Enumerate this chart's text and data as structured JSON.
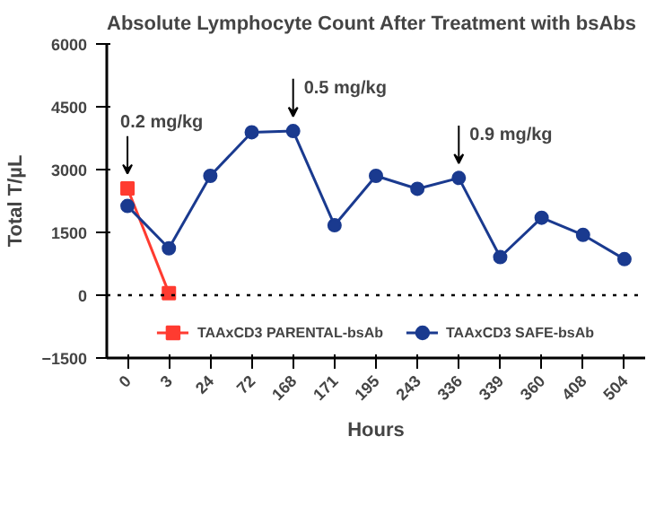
{
  "chart_data": {
    "type": "line",
    "title": "Absolute Lymphocyte Count After Treatment with bsAbs",
    "xlabel": "Hours",
    "ylabel": "Total T/µL",
    "categories": [
      "0",
      "3",
      "24",
      "72",
      "168",
      "171",
      "195",
      "243",
      "336",
      "339",
      "360",
      "408",
      "504"
    ],
    "series": [
      {
        "name": "TAAxCD3 PARENTAL-bsAb",
        "color": "#ff3b30",
        "marker": "square",
        "values": [
          2550,
          50,
          null,
          null,
          null,
          null,
          null,
          null,
          null,
          null,
          null,
          null,
          null
        ]
      },
      {
        "name": "TAAxCD3 SAFE-bsAb",
        "color": "#1a3a8f",
        "marker": "circle",
        "values": [
          2130,
          1120,
          2850,
          3890,
          3920,
          1670,
          2850,
          2540,
          2800,
          910,
          1850,
          1440,
          860
        ]
      }
    ],
    "ylim": [
      -1500,
      6000
    ],
    "yticks": [
      -1500,
      0,
      1500,
      3000,
      4500,
      6000
    ],
    "grid": false,
    "legend": "bottom",
    "ref_lines": [
      {
        "axis": "y",
        "value": 0,
        "color": "#000000",
        "line_style": "dotted"
      }
    ],
    "annotations": [
      {
        "text": "0.2 mg/kg",
        "x": "0",
        "y": 2550
      },
      {
        "text": "0.5 mg/kg",
        "x": "168",
        "y": 3920
      },
      {
        "text": "0.9 mg/kg",
        "x": "336",
        "y": 2800
      }
    ]
  }
}
